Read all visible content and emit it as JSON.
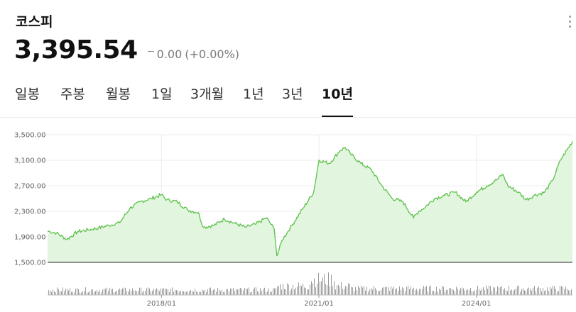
{
  "header": {
    "title": "코스피",
    "price": "3,395.54",
    "change_value": "0.00",
    "change_pct": "(+0.00%)"
  },
  "tabs": [
    {
      "label": "일봉",
      "active": false
    },
    {
      "label": "주봉",
      "active": false
    },
    {
      "label": "월봉",
      "active": false
    },
    {
      "label": "1일",
      "active": false
    },
    {
      "label": "3개월",
      "active": false
    },
    {
      "label": "1년",
      "active": false
    },
    {
      "label": "3년",
      "active": false
    },
    {
      "label": "10년",
      "active": true
    }
  ],
  "colors": {
    "line": "#5cc14a",
    "area": "#e2f5df",
    "volume": "#9a9a9a"
  },
  "chart_data": {
    "type": "area",
    "y_ticks": [
      "3,500.00",
      "3,100.00",
      "2,700.00",
      "2,300.00",
      "1,900.00",
      "1,500.00"
    ],
    "y_tick_values": [
      3500,
      3100,
      2700,
      2300,
      1900,
      1500
    ],
    "ylim": [
      1500,
      3500
    ],
    "x_ticks": [
      {
        "label": "2018/01",
        "t": 2018.0
      },
      {
        "label": "2021/01",
        "t": 2021.0
      },
      {
        "label": "2024/01",
        "t": 2024.0
      }
    ],
    "xlim": [
      2015.83,
      2025.83
    ],
    "grid": true,
    "series": [
      {
        "x": [
          2015.83,
          2016.0,
          2016.2,
          2016.4,
          2016.6,
          2016.8,
          2017.0,
          2017.2,
          2017.4,
          2017.6,
          2017.8,
          2018.0,
          2018.1,
          2018.3,
          2018.5,
          2018.7,
          2018.8,
          2019.0,
          2019.2,
          2019.4,
          2019.6,
          2019.8,
          2020.0,
          2020.15,
          2020.2,
          2020.3,
          2020.5,
          2020.7,
          2020.9,
          2021.0,
          2021.2,
          2021.4,
          2021.5,
          2021.6,
          2021.8,
          2022.0,
          2022.2,
          2022.4,
          2022.6,
          2022.8,
          2022.9,
          2023.0,
          2023.2,
          2023.4,
          2023.6,
          2023.8,
          2024.0,
          2024.2,
          2024.4,
          2024.5,
          2024.6,
          2024.8,
          2024.95,
          2025.1,
          2025.3,
          2025.45,
          2025.6,
          2025.83
        ],
        "y": [
          1990,
          1960,
          1860,
          1980,
          2010,
          2040,
          2080,
          2120,
          2350,
          2450,
          2500,
          2560,
          2480,
          2450,
          2320,
          2280,
          2050,
          2080,
          2180,
          2110,
          2050,
          2100,
          2200,
          2020,
          1600,
          1850,
          2100,
          2350,
          2600,
          3100,
          3050,
          3250,
          3300,
          3200,
          3050,
          2950,
          2700,
          2500,
          2450,
          2200,
          2300,
          2350,
          2500,
          2550,
          2600,
          2450,
          2600,
          2700,
          2800,
          2880,
          2700,
          2600,
          2480,
          2550,
          2600,
          2780,
          3100,
          3395
        ]
      }
    ],
    "volume_note": "volume histogram below price area"
  }
}
